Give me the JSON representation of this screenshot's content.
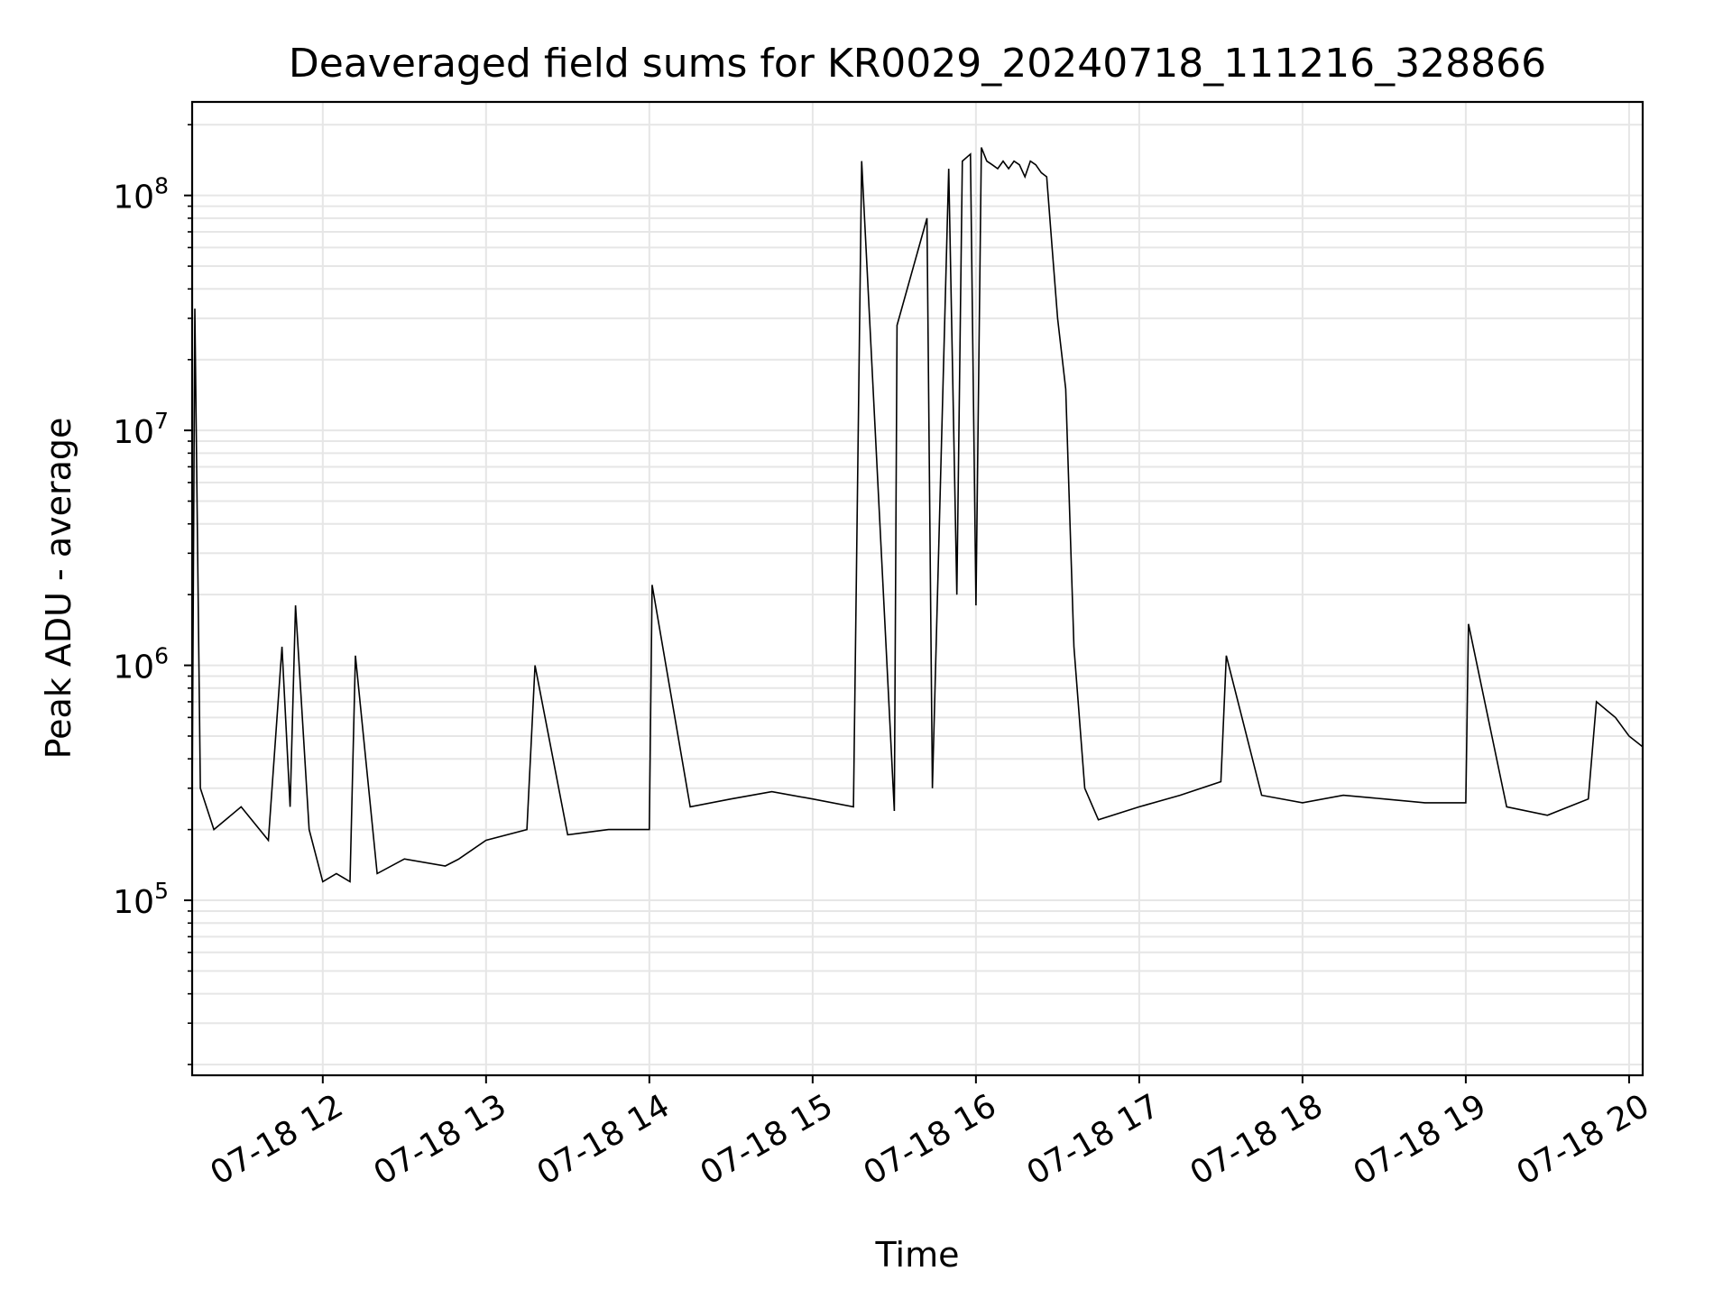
{
  "chart_data": {
    "type": "line",
    "title": "Deaveraged field sums for KR0029_20240718_111216_328866",
    "xlabel": "Time",
    "ylabel": "Peak ADU - average",
    "y_scale": "log",
    "xlim": [
      "2024-07-18 11:12",
      "2024-07-18 20:05"
    ],
    "ylim": [
      18000,
      250000000
    ],
    "x_ticks": [
      {
        "value": "2024-07-18 12:00",
        "label": "07-18 12"
      },
      {
        "value": "2024-07-18 13:00",
        "label": "07-18 13"
      },
      {
        "value": "2024-07-18 14:00",
        "label": "07-18 14"
      },
      {
        "value": "2024-07-18 15:00",
        "label": "07-18 15"
      },
      {
        "value": "2024-07-18 16:00",
        "label": "07-18 16"
      },
      {
        "value": "2024-07-18 17:00",
        "label": "07-18 17"
      },
      {
        "value": "2024-07-18 18:00",
        "label": "07-18 18"
      },
      {
        "value": "2024-07-18 19:00",
        "label": "07-18 19"
      },
      {
        "value": "2024-07-18 20:00",
        "label": "07-18 20"
      }
    ],
    "y_ticks": [
      {
        "value": 100000,
        "base": "10",
        "exp": "5"
      },
      {
        "value": 1000000,
        "base": "10",
        "exp": "6"
      },
      {
        "value": 10000000,
        "base": "10",
        "exp": "7"
      },
      {
        "value": 100000000,
        "base": "10",
        "exp": "8"
      }
    ],
    "grid": true,
    "line_color": "#000000",
    "grid_color": "#e6e6e6",
    "series": [
      {
        "x": [
          "2024-07-18 11:12",
          "2024-07-18 11:13",
          "2024-07-18 11:15",
          "2024-07-18 11:20",
          "2024-07-18 11:30",
          "2024-07-18 11:40",
          "2024-07-18 11:45",
          "2024-07-18 11:48",
          "2024-07-18 11:50",
          "2024-07-18 11:55",
          "2024-07-18 12:00",
          "2024-07-18 12:05",
          "2024-07-18 12:10",
          "2024-07-18 12:12",
          "2024-07-18 12:20",
          "2024-07-18 12:30",
          "2024-07-18 12:45",
          "2024-07-18 12:50",
          "2024-07-18 13:00",
          "2024-07-18 13:15",
          "2024-07-18 13:18",
          "2024-07-18 13:30",
          "2024-07-18 13:45",
          "2024-07-18 14:00",
          "2024-07-18 14:01",
          "2024-07-18 14:15",
          "2024-07-18 14:30",
          "2024-07-18 14:45",
          "2024-07-18 15:00",
          "2024-07-18 15:15",
          "2024-07-18 15:18",
          "2024-07-18 15:30",
          "2024-07-18 15:31",
          "2024-07-18 15:42",
          "2024-07-18 15:44",
          "2024-07-18 15:50",
          "2024-07-18 15:53",
          "2024-07-18 15:55",
          "2024-07-18 15:58",
          "2024-07-18 16:00",
          "2024-07-18 16:02",
          "2024-07-18 16:04",
          "2024-07-18 16:06",
          "2024-07-18 16:08",
          "2024-07-18 16:10",
          "2024-07-18 16:12",
          "2024-07-18 16:14",
          "2024-07-18 16:16",
          "2024-07-18 16:18",
          "2024-07-18 16:20",
          "2024-07-18 16:22",
          "2024-07-18 16:24",
          "2024-07-18 16:26",
          "2024-07-18 16:28",
          "2024-07-18 16:30",
          "2024-07-18 16:33",
          "2024-07-18 16:36",
          "2024-07-18 16:40",
          "2024-07-18 16:45",
          "2024-07-18 17:00",
          "2024-07-18 17:15",
          "2024-07-18 17:30",
          "2024-07-18 17:32",
          "2024-07-18 17:45",
          "2024-07-18 18:00",
          "2024-07-18 18:15",
          "2024-07-18 18:30",
          "2024-07-18 18:45",
          "2024-07-18 19:00",
          "2024-07-18 19:01",
          "2024-07-18 19:15",
          "2024-07-18 19:30",
          "2024-07-18 19:45",
          "2024-07-18 19:48",
          "2024-07-18 19:55",
          "2024-07-18 20:00",
          "2024-07-18 20:05"
        ],
        "values": [
          250000,
          33000000,
          300000,
          200000,
          250000,
          180000,
          1200000,
          250000,
          1800000,
          200000,
          120000,
          130000,
          120000,
          1100000,
          130000,
          150000,
          140000,
          150000,
          180000,
          200000,
          1000000,
          190000,
          200000,
          200000,
          2200000,
          250000,
          270000,
          290000,
          270000,
          250000,
          140000000,
          240000,
          28000000,
          80000000,
          300000,
          130000000,
          2000000,
          140000000,
          150000000,
          1800000,
          160000000,
          140000000,
          135000000,
          130000000,
          140000000,
          130000000,
          140000000,
          135000000,
          120000000,
          140000000,
          135000000,
          125000000,
          120000000,
          60000000,
          30000000,
          15000000,
          1200000,
          300000,
          220000,
          250000,
          280000,
          320000,
          1100000,
          280000,
          260000,
          280000,
          270000,
          260000,
          260000,
          1500000,
          250000,
          230000,
          270000,
          700000,
          600000,
          500000,
          450000
        ]
      }
    ]
  }
}
